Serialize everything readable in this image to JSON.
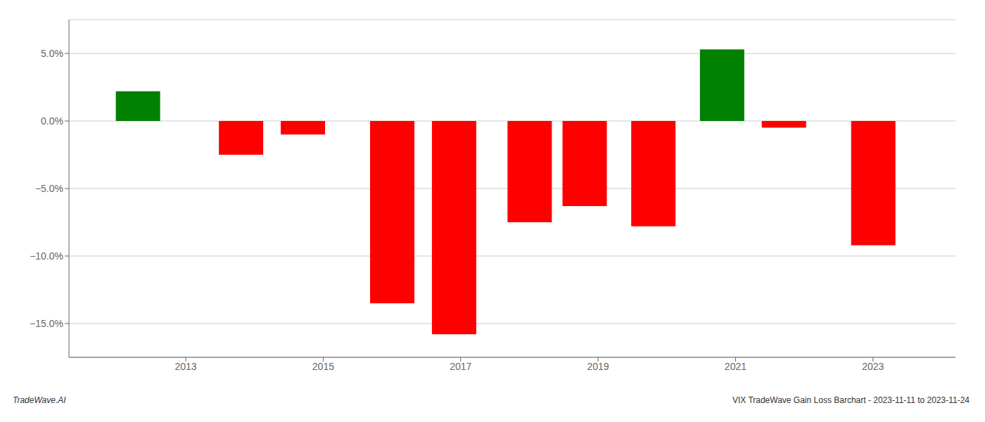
{
  "chart_data": {
    "type": "bar",
    "x": [
      2012.3,
      2013.8,
      2014.7,
      2016.0,
      2016.9,
      2018.0,
      2018.8,
      2019.8,
      2020.8,
      2021.7,
      2023.0
    ],
    "values": [
      2.2,
      -2.5,
      -1.0,
      -13.5,
      -15.8,
      -7.5,
      -6.3,
      -7.8,
      5.3,
      -0.5,
      -9.2
    ],
    "colors": [
      "#008000",
      "#ff0000",
      "#ff0000",
      "#ff0000",
      "#ff0000",
      "#ff0000",
      "#ff0000",
      "#ff0000",
      "#008000",
      "#ff0000",
      "#ff0000"
    ],
    "xlim": [
      2011.3,
      2024.2
    ],
    "xticks": [
      2013,
      2015,
      2017,
      2019,
      2021,
      2023
    ],
    "ylim": [
      -17.5,
      7.5
    ],
    "yticks": [
      {
        "value": 5.0,
        "label": "5.0%"
      },
      {
        "value": 0.0,
        "label": "0.0%"
      },
      {
        "value": -5.0,
        "label": "−5.0%"
      },
      {
        "value": -10.0,
        "label": "−10.0%"
      },
      {
        "value": -15.0,
        "label": "−15.0%"
      }
    ],
    "grid": true,
    "annotations": [
      "TradeWave.AI",
      "VIX TradeWave Gain Loss Barchart - 2023-11-11 to 2023-11-24"
    ]
  }
}
